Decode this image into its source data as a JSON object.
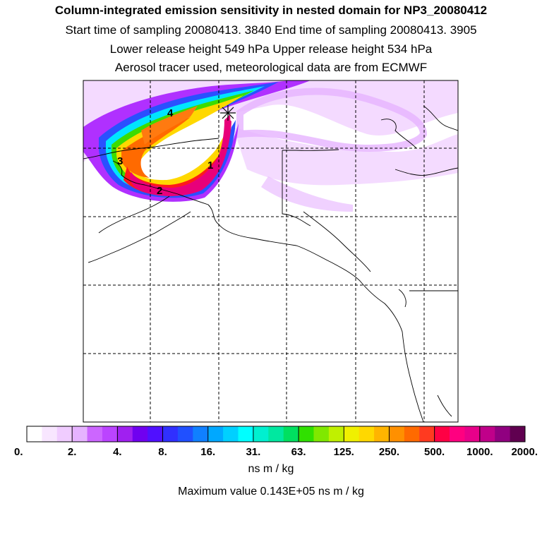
{
  "header": {
    "title": "Column-integrated emission sensitivity in nested domain for NP3_20080412",
    "line1": "Start time of sampling 20080413.  3840     End time of sampling 20080413.  3905",
    "line2": "Lower release height  549 hPa        Upper release height  534 hPa",
    "line3": "Aerosol tracer used, meteorological data are from ECMWF"
  },
  "map": {
    "plume_labels": [
      "1",
      "2",
      "3",
      "4"
    ],
    "colors": {
      "low": "#e6a8ff",
      "purple": "#b030ff",
      "blue": "#1e5aff",
      "cyan": "#00e5ff",
      "green": "#3cdc00",
      "yellow": "#ffd800",
      "orange": "#ff6a00",
      "red": "#ff1a1a",
      "magenta": "#e8007a"
    }
  },
  "colorbar": {
    "colors": [
      "#ffffff",
      "#f8e6ff",
      "#f0ccff",
      "#e6b3ff",
      "#cc66ff",
      "#bb44ff",
      "#a020f0",
      "#7000f0",
      "#5010ff",
      "#3030ff",
      "#2050ff",
      "#1080ff",
      "#00a8ff",
      "#00d0ff",
      "#00ffff",
      "#00f0d0",
      "#00e8a0",
      "#00e060",
      "#30e000",
      "#80e800",
      "#c0f000",
      "#f0f000",
      "#ffd800",
      "#ffb400",
      "#ff9000",
      "#ff6a00",
      "#ff3a20",
      "#ff0044",
      "#ff0080",
      "#e8008a",
      "#c0008a",
      "#900080",
      "#600050"
    ],
    "tick_labels": [
      "0.",
      "2.",
      "4.",
      "8.",
      "16.",
      "31.",
      "63.",
      "125.",
      "250.",
      "500.",
      "1000.",
      "2000."
    ],
    "units": "ns m / kg"
  },
  "footer": {
    "max_value": "Maximum value  0.143E+05 ns m / kg"
  }
}
